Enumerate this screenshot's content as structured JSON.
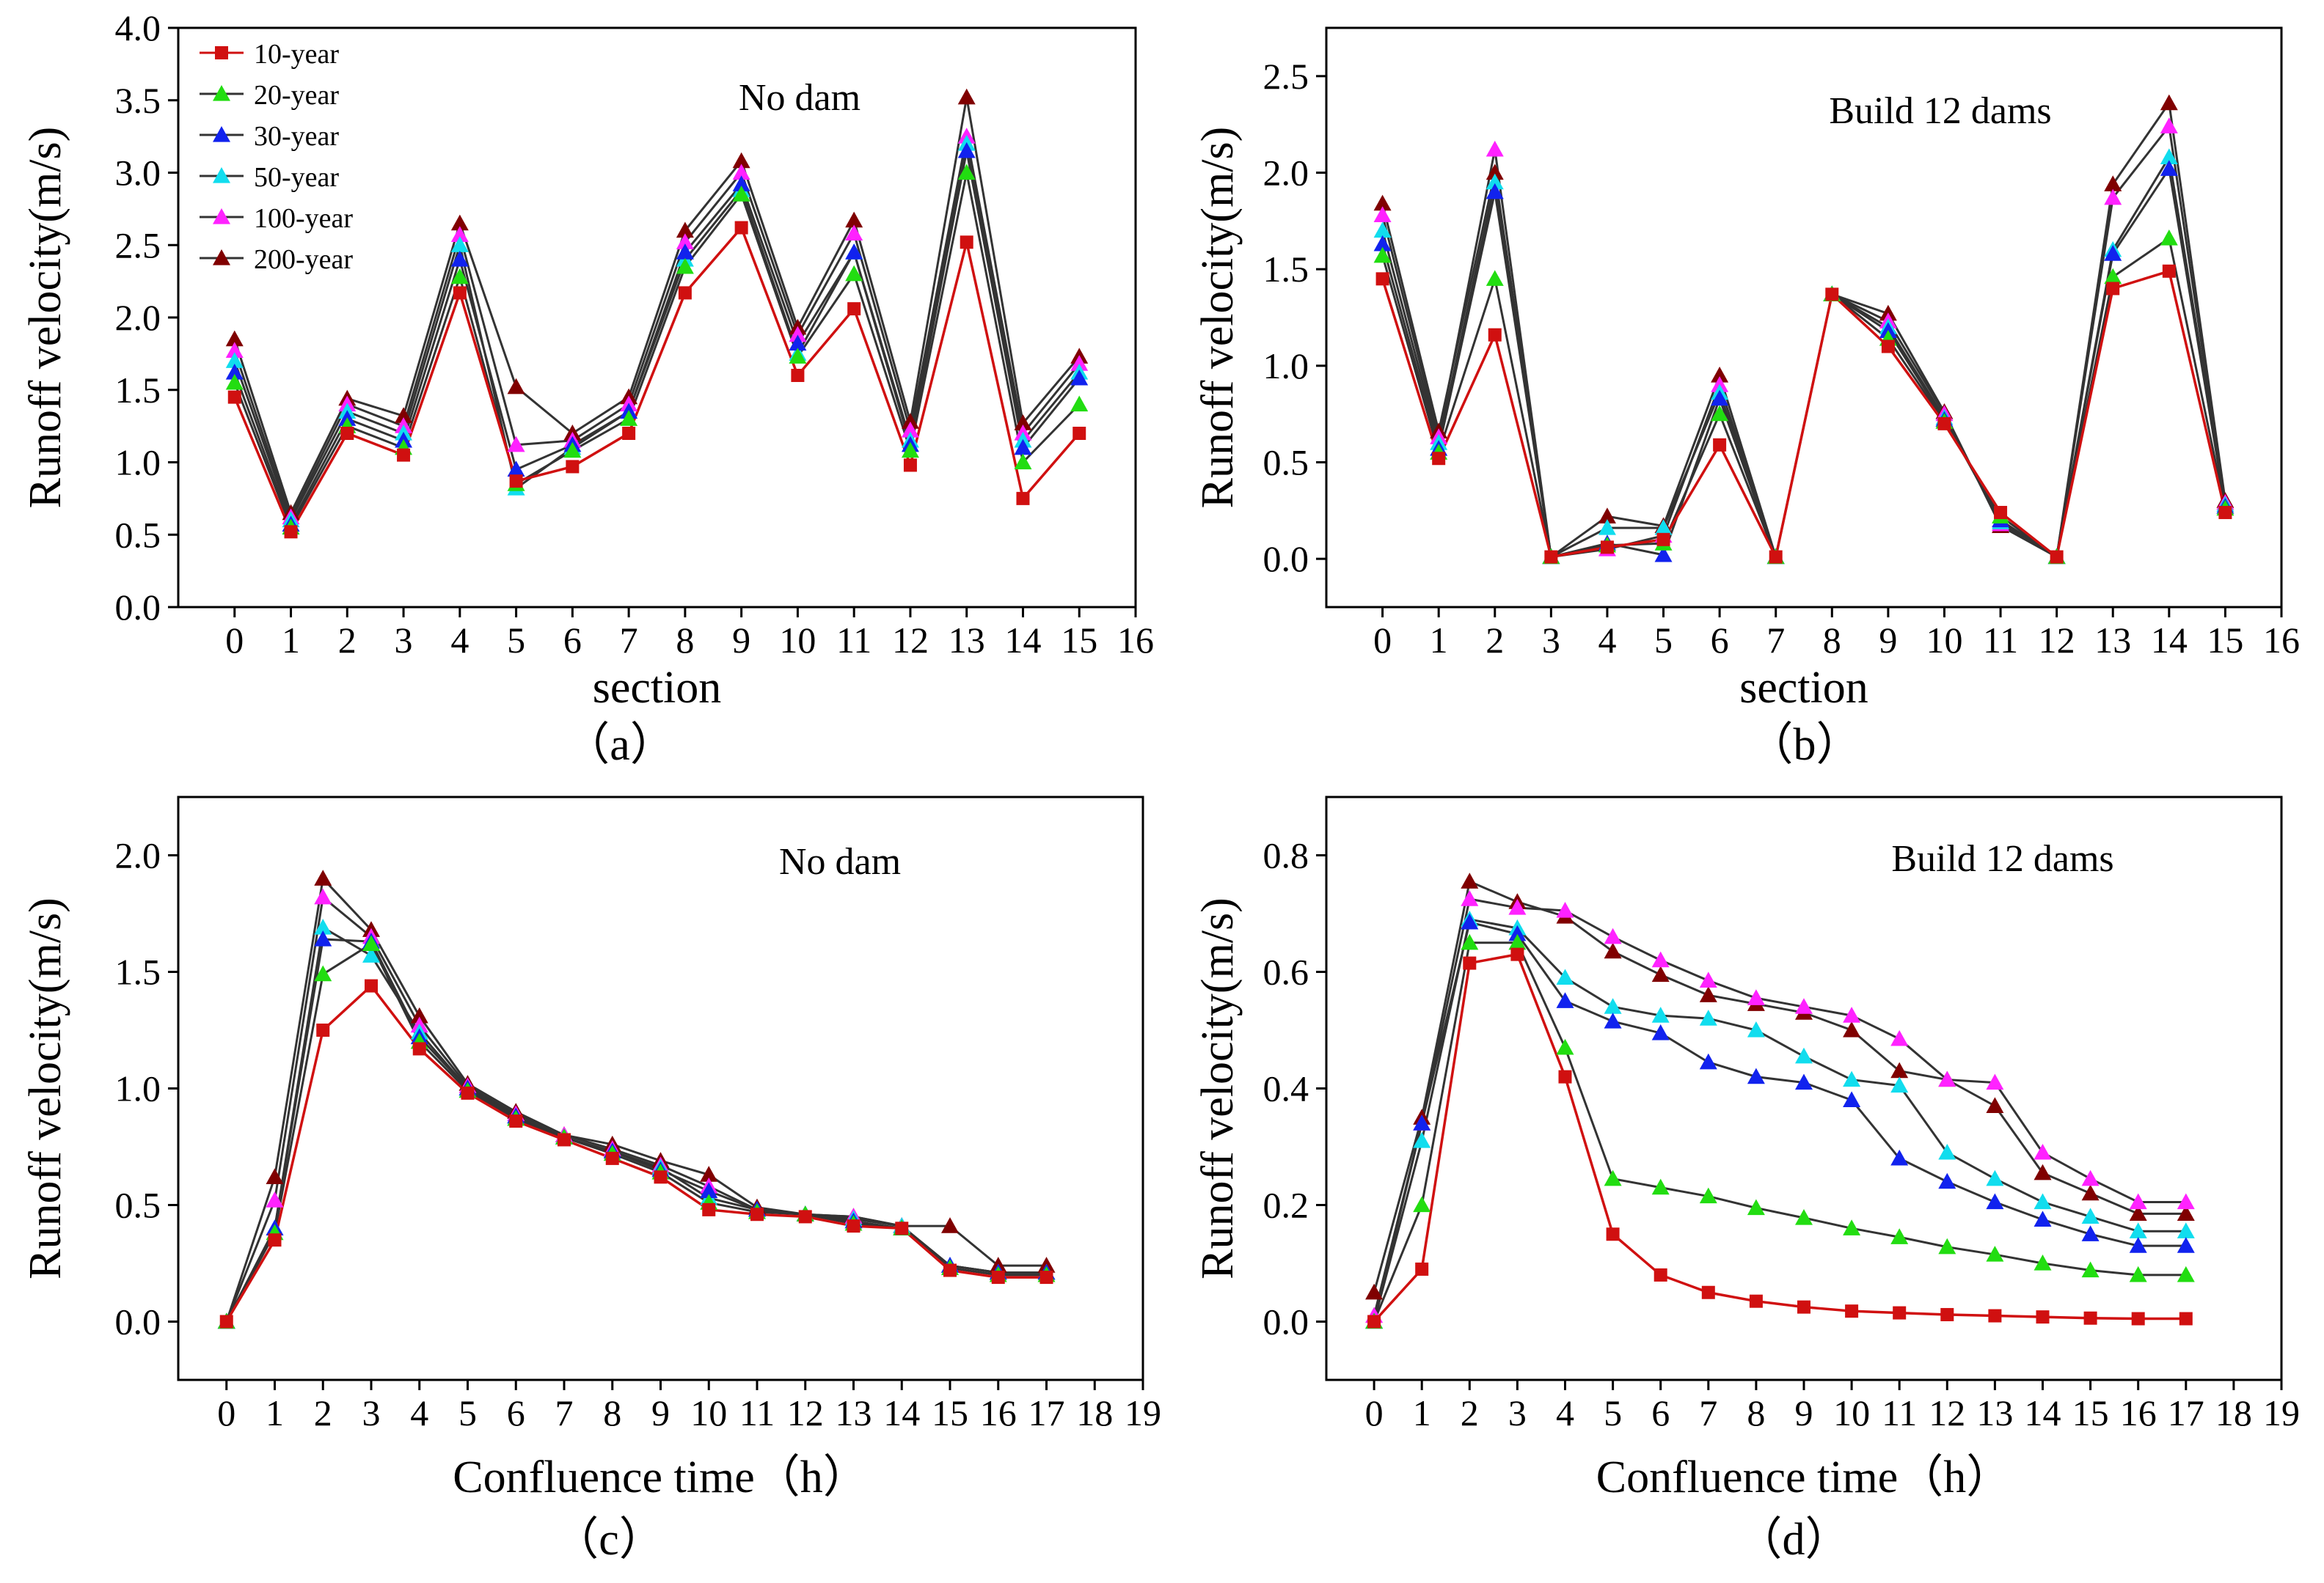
{
  "legend": [
    "10-year",
    "20-year",
    "30-year",
    "50-year",
    "100-year",
    "200-year"
  ],
  "series_styles": [
    {
      "marker": "square",
      "color": "#d01010",
      "line": "#d01010"
    },
    {
      "marker": "triangle",
      "color": "#22dd11",
      "line": "#333333"
    },
    {
      "marker": "triangle",
      "color": "#1122ee",
      "line": "#333333"
    },
    {
      "marker": "triangle",
      "color": "#11ddee",
      "line": "#333333"
    },
    {
      "marker": "triangle",
      "color": "#ff22ff",
      "line": "#333333"
    },
    {
      "marker": "triangle",
      "color": "#800000",
      "line": "#333333"
    }
  ],
  "chart_data": [
    {
      "id": "a",
      "type": "line",
      "panel_label": "（a）",
      "annotation": "No dam",
      "xlabel": "section",
      "ylabel": "Runoff velocity(m/s)",
      "xlim": [
        -1,
        16
      ],
      "ylim": [
        0,
        4
      ],
      "xticks": [
        0,
        1,
        2,
        3,
        4,
        5,
        6,
        7,
        8,
        9,
        10,
        11,
        12,
        13,
        14,
        15,
        16
      ],
      "yticks": [
        0.0,
        0.5,
        1.0,
        1.5,
        2.0,
        2.5,
        3.0,
        3.5,
        4.0
      ],
      "yticklabels": [
        "0.0",
        "0.5",
        "1.0",
        "1.5",
        "2.0",
        "2.5",
        "3.0",
        "3.5",
        "4.0"
      ],
      "show_legend": true,
      "x": [
        0,
        1,
        2,
        3,
        4,
        5,
        6,
        7,
        8,
        9,
        10,
        11,
        12,
        13,
        14,
        15
      ],
      "series": [
        {
          "name": "10-year",
          "values": [
            1.45,
            0.52,
            1.2,
            1.05,
            2.17,
            0.87,
            0.97,
            1.2,
            2.17,
            2.62,
            1.6,
            2.06,
            0.98,
            2.52,
            0.75,
            1.2
          ]
        },
        {
          "name": "20-year",
          "values": [
            1.55,
            0.55,
            1.25,
            1.1,
            2.28,
            0.85,
            1.08,
            1.3,
            2.35,
            2.85,
            1.73,
            2.3,
            1.08,
            3.0,
            1.0,
            1.4
          ]
        },
        {
          "name": "30-year",
          "values": [
            1.62,
            0.57,
            1.3,
            1.15,
            2.4,
            0.95,
            1.12,
            1.35,
            2.45,
            2.92,
            1.82,
            2.45,
            1.12,
            3.15,
            1.1,
            1.58
          ]
        },
        {
          "name": "50-year",
          "values": [
            1.7,
            0.6,
            1.35,
            1.2,
            2.5,
            0.82,
            1.1,
            1.35,
            2.4,
            2.88,
            1.75,
            2.45,
            1.15,
            3.2,
            1.15,
            1.62
          ]
        },
        {
          "name": "100-year",
          "values": [
            1.77,
            0.62,
            1.4,
            1.25,
            2.57,
            1.12,
            1.15,
            1.4,
            2.52,
            3.0,
            1.88,
            2.58,
            1.22,
            3.25,
            1.2,
            1.68
          ]
        },
        {
          "name": "200-year",
          "values": [
            1.85,
            0.65,
            1.44,
            1.32,
            2.65,
            1.52,
            1.2,
            1.45,
            2.6,
            3.08,
            1.93,
            2.67,
            1.28,
            3.52,
            1.27,
            1.73
          ]
        }
      ]
    },
    {
      "id": "b",
      "type": "line",
      "panel_label": "（b）",
      "annotation": "Build 12 dams",
      "xlabel": "section",
      "ylabel": "Runoff velocity(m/s)",
      "xlim": [
        -1,
        16
      ],
      "ylim": [
        -0.25,
        2.75
      ],
      "xticks": [
        0,
        1,
        2,
        3,
        4,
        5,
        6,
        7,
        8,
        9,
        10,
        11,
        12,
        13,
        14,
        15,
        16
      ],
      "yticks": [
        0.0,
        0.5,
        1.0,
        1.5,
        2.0,
        2.5
      ],
      "yticklabels": [
        "0.0",
        "0.5",
        "1.0",
        "1.5",
        "2.0",
        "2.5"
      ],
      "show_legend": false,
      "x": [
        0,
        1,
        2,
        3,
        4,
        5,
        6,
        7,
        8,
        9,
        10,
        11,
        12,
        13,
        14,
        15
      ],
      "series": [
        {
          "name": "10-year",
          "values": [
            1.45,
            0.52,
            1.16,
            0.01,
            0.06,
            0.1,
            0.59,
            0.01,
            1.37,
            1.1,
            0.7,
            0.24,
            0.01,
            1.4,
            1.49,
            0.24
          ]
        },
        {
          "name": "20-year",
          "values": [
            1.57,
            0.55,
            1.45,
            0.01,
            0.07,
            0.08,
            0.75,
            0.01,
            1.37,
            1.14,
            0.71,
            0.22,
            0.01,
            1.46,
            1.66,
            0.26
          ]
        },
        {
          "name": "30-year",
          "values": [
            1.63,
            0.57,
            1.9,
            0.01,
            0.08,
            0.02,
            0.83,
            0.01,
            1.37,
            1.18,
            0.72,
            0.2,
            0.01,
            1.58,
            2.02,
            0.27
          ]
        },
        {
          "name": "50-year",
          "values": [
            1.7,
            0.6,
            1.95,
            0.01,
            0.16,
            0.16,
            0.86,
            0.01,
            1.37,
            1.2,
            0.73,
            0.19,
            0.01,
            1.6,
            2.08,
            0.28
          ]
        },
        {
          "name": "100-year",
          "values": [
            1.78,
            0.63,
            2.12,
            0.01,
            0.05,
            0.12,
            0.9,
            0.01,
            1.37,
            1.23,
            0.75,
            0.18,
            0.01,
            1.87,
            2.24,
            0.29
          ]
        },
        {
          "name": "200-year",
          "values": [
            1.84,
            0.66,
            2.0,
            0.01,
            0.22,
            0.17,
            0.95,
            0.01,
            1.37,
            1.27,
            0.76,
            0.17,
            0.01,
            1.94,
            2.36,
            0.3
          ]
        }
      ]
    },
    {
      "id": "c",
      "type": "line",
      "panel_label": "（c）",
      "annotation": "No dam",
      "xlabel": "Confluence time（h）",
      "ylabel": "Runoff velocity(m/s)",
      "xlim": [
        -1,
        19
      ],
      "ylim": [
        -0.25,
        2.25
      ],
      "xticks": [
        0,
        1,
        2,
        3,
        4,
        5,
        6,
        7,
        8,
        9,
        10,
        11,
        12,
        13,
        14,
        15,
        16,
        17,
        18,
        19
      ],
      "yticks": [
        0.0,
        0.5,
        1.0,
        1.5,
        2.0
      ],
      "yticklabels": [
        "0.0",
        "0.5",
        "1.0",
        "1.5",
        "2.0"
      ],
      "show_legend": false,
      "x": [
        0,
        1,
        2,
        3,
        4,
        5,
        6,
        7,
        8,
        9,
        10,
        11,
        12,
        13,
        14,
        15,
        16,
        17
      ],
      "series": [
        {
          "name": "10-year",
          "values": [
            0.0,
            0.35,
            1.25,
            1.44,
            1.17,
            0.98,
            0.86,
            0.78,
            0.7,
            0.62,
            0.48,
            0.46,
            0.45,
            0.41,
            0.4,
            0.22,
            0.19,
            0.19
          ]
        },
        {
          "name": "20-year",
          "values": [
            0.0,
            0.38,
            1.49,
            1.62,
            1.2,
            0.99,
            0.87,
            0.79,
            0.72,
            0.64,
            0.51,
            0.47,
            0.46,
            0.42,
            0.4,
            0.23,
            0.2,
            0.2
          ]
        },
        {
          "name": "30-year",
          "values": [
            0.0,
            0.4,
            1.64,
            1.63,
            1.22,
            1.0,
            0.88,
            0.79,
            0.73,
            0.65,
            0.56,
            0.48,
            0.46,
            0.43,
            0.4,
            0.24,
            0.21,
            0.21
          ]
        },
        {
          "name": "50-year",
          "values": [
            0.0,
            0.4,
            1.69,
            1.57,
            1.24,
            1.0,
            0.88,
            0.79,
            0.73,
            0.66,
            0.53,
            0.48,
            0.46,
            0.44,
            0.41,
            0.24,
            0.21,
            0.21
          ]
        },
        {
          "name": "100-year",
          "values": [
            0.0,
            0.52,
            1.82,
            1.65,
            1.27,
            1.01,
            0.89,
            0.8,
            0.74,
            0.67,
            0.58,
            0.48,
            0.46,
            0.45,
            0.41,
            0.24,
            0.21,
            0.21
          ]
        },
        {
          "name": "200-year",
          "values": [
            0.0,
            0.62,
            1.9,
            1.68,
            1.31,
            1.02,
            0.9,
            0.8,
            0.76,
            0.69,
            0.63,
            0.49,
            0.46,
            0.45,
            0.41,
            0.41,
            0.24,
            0.24
          ]
        }
      ]
    },
    {
      "id": "d",
      "type": "line",
      "panel_label": "（d）",
      "annotation": "Build 12 dams",
      "xlabel": "Confluence time（h）",
      "ylabel": "Runoff velocity(m/s)",
      "xlim": [
        -1,
        19
      ],
      "ylim": [
        -0.1,
        0.9
      ],
      "xticks": [
        0,
        1,
        2,
        3,
        4,
        5,
        6,
        7,
        8,
        9,
        10,
        11,
        12,
        13,
        14,
        15,
        16,
        17,
        18,
        19
      ],
      "yticks": [
        0.0,
        0.2,
        0.4,
        0.6,
        0.8
      ],
      "yticklabels": [
        "0.0",
        "0.2",
        "0.4",
        "0.6",
        "0.8"
      ],
      "show_legend": false,
      "x": [
        0,
        1,
        2,
        3,
        4,
        5,
        6,
        7,
        8,
        9,
        10,
        11,
        12,
        13,
        14,
        15,
        16,
        17
      ],
      "series": [
        {
          "name": "10-year",
          "values": [
            0.0,
            0.09,
            0.615,
            0.63,
            0.42,
            0.15,
            0.08,
            0.05,
            0.035,
            0.025,
            0.018,
            0.015,
            0.012,
            0.01,
            0.008,
            0.006,
            0.005,
            0.005
          ]
        },
        {
          "name": "20-year",
          "values": [
            0.0,
            0.2,
            0.65,
            0.65,
            0.47,
            0.245,
            0.23,
            0.215,
            0.195,
            0.178,
            0.16,
            0.145,
            0.128,
            0.115,
            0.1,
            0.088,
            0.08,
            0.08
          ]
        },
        {
          "name": "30-year",
          "values": [
            0.0,
            0.34,
            0.685,
            0.665,
            0.55,
            0.515,
            0.495,
            0.445,
            0.42,
            0.41,
            0.38,
            0.28,
            0.24,
            0.205,
            0.175,
            0.15,
            0.13,
            0.13
          ]
        },
        {
          "name": "50-year",
          "values": [
            0.0,
            0.31,
            0.69,
            0.675,
            0.59,
            0.54,
            0.525,
            0.52,
            0.5,
            0.455,
            0.415,
            0.405,
            0.29,
            0.245,
            0.205,
            0.18,
            0.155,
            0.155
          ]
        },
        {
          "name": "100-year",
          "values": [
            0.01,
            0.34,
            0.725,
            0.71,
            0.705,
            0.66,
            0.62,
            0.585,
            0.555,
            0.54,
            0.525,
            0.485,
            0.415,
            0.41,
            0.29,
            0.245,
            0.205,
            0.205
          ]
        },
        {
          "name": "200-year",
          "values": [
            0.05,
            0.35,
            0.755,
            0.72,
            0.695,
            0.635,
            0.595,
            0.56,
            0.545,
            0.53,
            0.5,
            0.43,
            0.415,
            0.37,
            0.255,
            0.22,
            0.185,
            0.185
          ]
        }
      ]
    }
  ]
}
